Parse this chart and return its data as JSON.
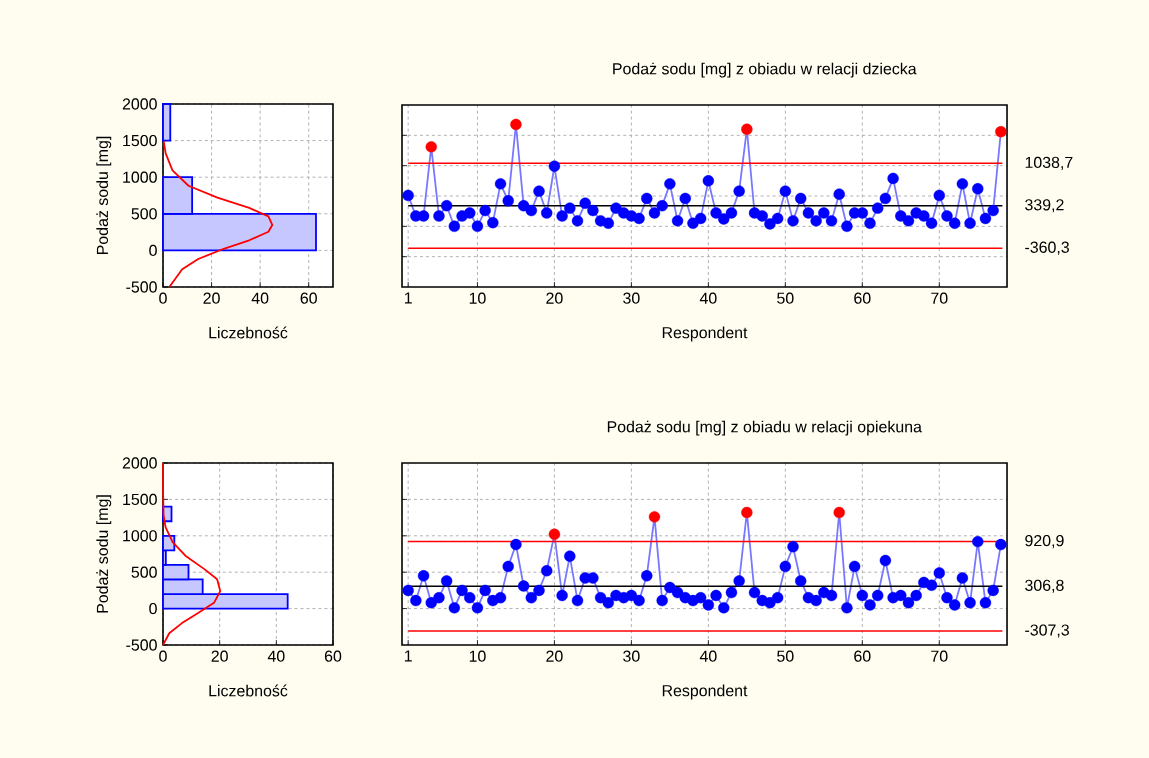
{
  "chart_data": [
    {
      "type": "histogram",
      "orientation": "horizontal",
      "xlabel": "Liczebność",
      "ylabel": "Podaż sodu [mg]",
      "bins": [
        0,
        500,
        1000,
        1500,
        2000
      ],
      "values": [
        63,
        12,
        0,
        3
      ],
      "color": "#0000ff",
      "xlim": [
        0,
        70
      ],
      "xticks": [
        0,
        20,
        40,
        60
      ],
      "ylim": [
        -500,
        2000
      ],
      "yticks": [
        -500,
        0,
        500,
        1000,
        1500,
        2000
      ],
      "grid": true,
      "series": [
        {
          "type": "line",
          "color": "#ff0000",
          "x": [
            -500,
            -258,
            -118,
            22,
            138,
            254,
            347,
            464,
            580,
            720,
            883,
            1092,
            1325,
            1488
          ],
          "values": [
            2.6,
            7.9,
            14.5,
            25,
            35.5,
            43.4,
            45,
            43.4,
            35.5,
            22.4,
            10.5,
            3.9,
            1.1,
            0.3
          ]
        }
      ]
    },
    {
      "type": "line",
      "title": "Podaż sodu [mg] z obiadu w relacji dziecka",
      "xlabel": "Respondent",
      "xlim": [
        0.2,
        78.8
      ],
      "xticks": [
        1,
        10,
        20,
        30,
        40,
        50,
        60,
        70
      ],
      "ylim": [
        -1000,
        2000
      ],
      "yticks": [
        {
          "value": -500,
          "label": null
        },
        {
          "value": 0,
          "label": null
        },
        {
          "value": 500,
          "label": null
        },
        {
          "value": 1000,
          "label": null
        },
        {
          "value": 1500,
          "label": null
        }
      ],
      "tick_labels": "x",
      "grid": true,
      "marker": "circle",
      "x": [
        1,
        2,
        3,
        4,
        5,
        6,
        7,
        8,
        9,
        10,
        11,
        12,
        13,
        14,
        15,
        16,
        17,
        18,
        19,
        20,
        21,
        22,
        23,
        24,
        25,
        26,
        27,
        28,
        29,
        30,
        31,
        32,
        33,
        34,
        35,
        36,
        37,
        38,
        39,
        40,
        41,
        42,
        43,
        44,
        45,
        46,
        47,
        48,
        49,
        50,
        51,
        52,
        53,
        54,
        55,
        56,
        57,
        58,
        59,
        60,
        61,
        62,
        63,
        64,
        65,
        66,
        67,
        68,
        69,
        70,
        71,
        72,
        73,
        74,
        75,
        76,
        77,
        78
      ],
      "series": [
        {
          "color": "#7878ff",
          "values": [
            510,
            170,
            170,
            1310,
            170,
            340,
            0,
            170,
            220,
            0,
            260,
            60,
            700,
            420,
            1680,
            340,
            260,
            580,
            220,
            990,
            170,
            300,
            90,
            380,
            260,
            90,
            50,
            300,
            220,
            170,
            130,
            460,
            220,
            340,
            700,
            90,
            460,
            50,
            130,
            750,
            220,
            120,
            220,
            580,
            1600,
            220,
            170,
            40,
            130,
            580,
            90,
            460,
            220,
            90,
            220,
            90,
            530,
            0,
            220,
            220,
            50,
            300,
            460,
            790,
            170,
            90,
            220,
            170,
            50,
            510,
            170,
            50,
            700,
            50,
            620,
            130,
            260,
            1560
          ],
          "colors": [
            "#0000ff",
            "#0000ff",
            "#0000ff",
            "#ff0000",
            "#0000ff",
            "#0000ff",
            "#0000ff",
            "#0000ff",
            "#0000ff",
            "#0000ff",
            "#0000ff",
            "#0000ff",
            "#0000ff",
            "#0000ff",
            "#ff0000",
            "#0000ff",
            "#0000ff",
            "#0000ff",
            "#0000ff",
            "#0000ff",
            "#0000ff",
            "#0000ff",
            "#0000ff",
            "#0000ff",
            "#0000ff",
            "#0000ff",
            "#0000ff",
            "#0000ff",
            "#0000ff",
            "#0000ff",
            "#0000ff",
            "#0000ff",
            "#0000ff",
            "#0000ff",
            "#0000ff",
            "#0000ff",
            "#0000ff",
            "#0000ff",
            "#0000ff",
            "#0000ff",
            "#0000ff",
            "#0000ff",
            "#0000ff",
            "#0000ff",
            "#ff0000",
            "#0000ff",
            "#0000ff",
            "#0000ff",
            "#0000ff",
            "#0000ff",
            "#0000ff",
            "#0000ff",
            "#0000ff",
            "#0000ff",
            "#0000ff",
            "#0000ff",
            "#0000ff",
            "#0000ff",
            "#0000ff",
            "#0000ff",
            "#0000ff",
            "#0000ff",
            "#0000ff",
            "#0000ff",
            "#0000ff",
            "#0000ff",
            "#0000ff",
            "#0000ff",
            "#0000ff",
            "#0000ff",
            "#0000ff",
            "#0000ff",
            "#0000ff",
            "#0000ff",
            "#0000ff",
            "#0000ff",
            "#0000ff",
            "#ff0000"
          ]
        }
      ],
      "ref_lines": [
        {
          "axis": "y",
          "value": 1038.7,
          "label": "1038,7",
          "color": "#ff0000"
        },
        {
          "axis": "y",
          "value": 339.2,
          "label": "339,2",
          "color": "#000000"
        },
        {
          "axis": "y",
          "value": -360.3,
          "label": "-360,3",
          "color": "#ff0000"
        }
      ]
    },
    {
      "type": "histogram",
      "orientation": "horizontal",
      "xlabel": "Liczebność",
      "ylabel": "Podaż sodu [mg]",
      "bins": [
        0,
        200,
        400,
        600,
        800,
        1000,
        1200,
        1400
      ],
      "values": [
        44,
        14,
        9,
        1,
        4,
        0,
        3
      ],
      "color": "#0000ff",
      "xlim": [
        0,
        60
      ],
      "xticks": [
        0,
        20,
        40,
        60
      ],
      "ylim": [
        -500,
        2000
      ],
      "yticks": [
        -500,
        0,
        500,
        1000,
        1500,
        2000
      ],
      "grid": true,
      "series": [
        {
          "type": "line",
          "color": "#ff0000",
          "x": [
            -500,
            -338,
            -199,
            -60,
            79,
            241,
            403,
            542,
            727,
            912,
            1120,
            1282,
            1653,
            2000
          ],
          "values": [
            0,
            2.2,
            6.7,
            12.4,
            18,
            20.2,
            19.1,
            14.6,
            7.9,
            3.4,
            0.9,
            0.2,
            0,
            0
          ]
        }
      ]
    },
    {
      "type": "line",
      "title": "Podaż sodu [mg] z obiadu w relacji opiekuna",
      "xlabel": "Respondent",
      "xlim": [
        0.2,
        78.8
      ],
      "xticks": [
        1,
        10,
        20,
        30,
        40,
        50,
        60,
        70
      ],
      "ylim": [
        -500,
        2000
      ],
      "yticks": [
        {
          "value": 0,
          "label": null
        },
        {
          "value": 500,
          "label": null
        },
        {
          "value": 1000,
          "label": null
        },
        {
          "value": 1500,
          "label": null
        }
      ],
      "tick_labels": "x",
      "grid": true,
      "marker": "circle",
      "x": [
        1,
        2,
        3,
        4,
        5,
        6,
        7,
        8,
        9,
        10,
        11,
        12,
        13,
        14,
        15,
        16,
        17,
        18,
        19,
        20,
        21,
        22,
        23,
        24,
        25,
        26,
        27,
        28,
        29,
        30,
        31,
        32,
        33,
        34,
        35,
        36,
        37,
        38,
        39,
        40,
        41,
        42,
        43,
        44,
        45,
        46,
        47,
        48,
        49,
        50,
        51,
        52,
        53,
        54,
        55,
        56,
        57,
        58,
        59,
        60,
        61,
        62,
        63,
        64,
        65,
        66,
        67,
        68,
        69,
        70,
        71,
        72,
        73,
        74,
        75,
        76,
        77,
        78
      ],
      "series": [
        {
          "color": "#7878ff",
          "values": [
            250,
            110,
            450,
            80,
            150,
            380,
            10,
            250,
            150,
            10,
            250,
            110,
            150,
            580,
            880,
            310,
            150,
            250,
            520,
            1020,
            180,
            720,
            110,
            420,
            420,
            150,
            80,
            180,
            150,
            180,
            110,
            450,
            1260,
            110,
            290,
            220,
            150,
            110,
            150,
            50,
            180,
            10,
            220,
            380,
            1320,
            220,
            110,
            80,
            150,
            580,
            850,
            380,
            150,
            110,
            220,
            180,
            1320,
            10,
            580,
            180,
            50,
            180,
            660,
            150,
            180,
            80,
            180,
            360,
            320,
            490,
            150,
            50,
            420,
            80,
            920,
            80,
            250,
            880
          ],
          "colors": [
            "#0000ff",
            "#0000ff",
            "#0000ff",
            "#0000ff",
            "#0000ff",
            "#0000ff",
            "#0000ff",
            "#0000ff",
            "#0000ff",
            "#0000ff",
            "#0000ff",
            "#0000ff",
            "#0000ff",
            "#0000ff",
            "#0000ff",
            "#0000ff",
            "#0000ff",
            "#0000ff",
            "#0000ff",
            "#ff0000",
            "#0000ff",
            "#0000ff",
            "#0000ff",
            "#0000ff",
            "#0000ff",
            "#0000ff",
            "#0000ff",
            "#0000ff",
            "#0000ff",
            "#0000ff",
            "#0000ff",
            "#0000ff",
            "#ff0000",
            "#0000ff",
            "#0000ff",
            "#0000ff",
            "#0000ff",
            "#0000ff",
            "#0000ff",
            "#0000ff",
            "#0000ff",
            "#0000ff",
            "#0000ff",
            "#0000ff",
            "#ff0000",
            "#0000ff",
            "#0000ff",
            "#0000ff",
            "#0000ff",
            "#0000ff",
            "#0000ff",
            "#0000ff",
            "#0000ff",
            "#0000ff",
            "#0000ff",
            "#0000ff",
            "#ff0000",
            "#0000ff",
            "#0000ff",
            "#0000ff",
            "#0000ff",
            "#0000ff",
            "#0000ff",
            "#0000ff",
            "#0000ff",
            "#0000ff",
            "#0000ff",
            "#0000ff",
            "#0000ff",
            "#0000ff",
            "#0000ff",
            "#0000ff",
            "#0000ff",
            "#0000ff",
            "#0000ff",
            "#0000ff",
            "#0000ff",
            "#0000ff"
          ]
        }
      ],
      "ref_lines": [
        {
          "axis": "y",
          "value": 920.9,
          "label": "920,9",
          "color": "#ff0000"
        },
        {
          "axis": "y",
          "value": 306.8,
          "label": "306,8",
          "color": "#000000"
        },
        {
          "axis": "y",
          "value": -307.3,
          "label": "-307,3",
          "color": "#ff0000"
        }
      ]
    }
  ]
}
